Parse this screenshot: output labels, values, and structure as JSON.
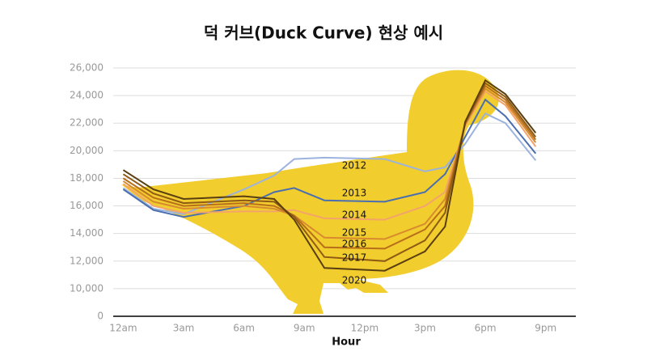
{
  "chart_data": {
    "type": "line",
    "title": "덕 커브(Duck Curve) 현상 예시",
    "x_label": "Hour",
    "x": [
      0,
      1.5,
      3,
      6,
      7.5,
      8.5,
      10,
      13,
      15,
      16,
      17,
      18,
      19,
      20.5
    ],
    "xlim": [
      -0.5,
      22.5
    ],
    "xticks": [
      {
        "value": 0,
        "label": "12am"
      },
      {
        "value": 3,
        "label": "3am"
      },
      {
        "value": 6,
        "label": "6am"
      },
      {
        "value": 9,
        "label": "9am"
      },
      {
        "value": 12,
        "label": "12pm"
      },
      {
        "value": 15,
        "label": "3pm"
      },
      {
        "value": 18,
        "label": "6pm"
      },
      {
        "value": 21,
        "label": "9pm"
      }
    ],
    "ylim": [
      0,
      26000
    ],
    "yticks": [
      {
        "value": 0,
        "label": "0"
      },
      {
        "value": 10000,
        "label": "10,000"
      },
      {
        "value": 12000,
        "label": "12,000"
      },
      {
        "value": 14000,
        "label": "14,000"
      },
      {
        "value": 16000,
        "label": "16,000"
      },
      {
        "value": 18000,
        "label": "18,000"
      },
      {
        "value": 20000,
        "label": "20,000"
      },
      {
        "value": 22000,
        "label": "22,000"
      },
      {
        "value": 24000,
        "label": "24,000"
      },
      {
        "value": 26000,
        "label": "26,000"
      }
    ],
    "grid": true,
    "series": [
      {
        "name": "2012",
        "color": "#9bb3dd",
        "values": [
          17300,
          15800,
          15400,
          17200,
          18200,
          19400,
          19500,
          19400,
          18500,
          18800,
          20500,
          22700,
          22000,
          19300
        ]
      },
      {
        "name": "2013",
        "color": "#4a6fb0",
        "values": [
          17200,
          15700,
          15200,
          16000,
          17000,
          17300,
          16400,
          16300,
          17000,
          18300,
          21000,
          23700,
          22500,
          19800
        ]
      },
      {
        "name": "2014",
        "color": "#f2a46a",
        "values": [
          17600,
          16000,
          15500,
          15600,
          15600,
          15700,
          15100,
          15000,
          16000,
          17000,
          21800,
          24300,
          23300,
          20300
        ]
      },
      {
        "name": "2015",
        "color": "#d88a2e",
        "values": [
          17800,
          16300,
          15800,
          16000,
          15800,
          15300,
          13700,
          13600,
          14700,
          16500,
          21900,
          24500,
          23500,
          20600
        ]
      },
      {
        "name": "2016",
        "color": "#b86f1a",
        "values": [
          18000,
          16600,
          16000,
          16200,
          16000,
          15300,
          13000,
          12900,
          14300,
          16000,
          22000,
          24700,
          23700,
          20800
        ]
      },
      {
        "name": "2017",
        "color": "#8f5a14",
        "values": [
          18300,
          16900,
          16200,
          16400,
          16300,
          15200,
          12300,
          12000,
          13500,
          15500,
          22000,
          24900,
          23900,
          21000
        ]
      },
      {
        "name": "2020",
        "color": "#5a3f10",
        "values": [
          18600,
          17200,
          16500,
          16700,
          16500,
          15000,
          11500,
          11300,
          12700,
          14500,
          22100,
          25100,
          24100,
          21300
        ]
      }
    ]
  }
}
